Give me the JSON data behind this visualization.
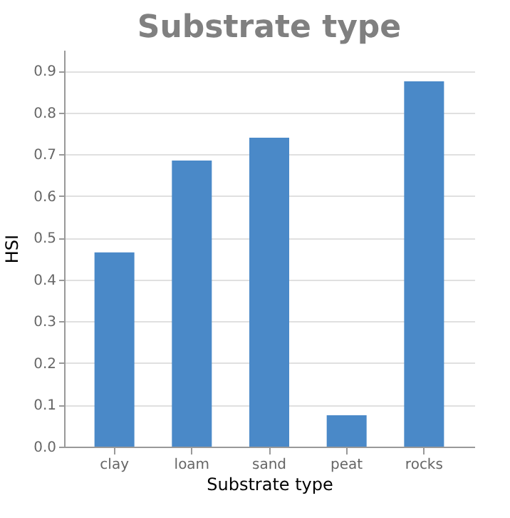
{
  "chart_data": {
    "type": "bar",
    "title": "Substrate type",
    "xlabel": "Substrate type",
    "ylabel": "HSI",
    "categories": [
      "clay",
      "loam",
      "sand",
      "peat",
      "rocks"
    ],
    "values": [
      0.465,
      0.685,
      0.74,
      0.075,
      0.875
    ],
    "color": "#4a89c8",
    "ylim": [
      0,
      0.95
    ],
    "yticks": [
      {
        "value": 0,
        "label": "0.0"
      },
      0.1,
      0.2,
      0.3,
      0.4,
      0.5,
      0.6,
      0.7,
      0.8,
      0.9
    ],
    "grid": "y"
  }
}
